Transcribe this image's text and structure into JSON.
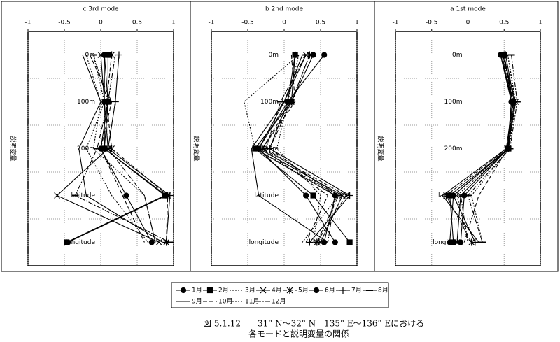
{
  "chart_data": [
    {
      "type": "line",
      "title": "c  3rd mode",
      "y_label": "説明変量",
      "orientation": "horizontal",
      "categories": [
        "0m",
        "100m",
        "200m",
        "latitude",
        "longitude"
      ],
      "xlim": [
        -1,
        1
      ],
      "xticks": [
        -1,
        -0.5,
        0,
        0.5,
        1
      ],
      "grid": true,
      "series": [
        {
          "name": "1月",
          "color": "#000000",
          "marker": "circle",
          "line_style": "solid",
          "values": [
            0.05,
            0.05,
            0.05,
            0.9,
            -0.45
          ]
        },
        {
          "name": "2月",
          "color": "#000000",
          "marker": "square",
          "line_style": "solid",
          "values": [
            0.1,
            0.1,
            0.05,
            0.88,
            -0.47
          ]
        },
        {
          "name": "3月",
          "color": "#000000",
          "marker": "none",
          "line_style": "dotted",
          "values": [
            -0.2,
            0.0,
            -0.1,
            0.6,
            0.75
          ]
        },
        {
          "name": "4月",
          "color": "#000000",
          "marker": "x",
          "line_style": "solid",
          "values": [
            0.0,
            0.05,
            0.1,
            -0.6,
            0.8
          ]
        },
        {
          "name": "5月",
          "color": "#000000",
          "marker": "star",
          "line_style": "dashed",
          "values": [
            0.15,
            0.08,
            0.15,
            0.92,
            0.9
          ]
        },
        {
          "name": "6月",
          "color": "#000000",
          "marker": "circle",
          "line_style": "solid",
          "values": [
            0.05,
            0.1,
            0.0,
            0.35,
            0.7
          ]
        },
        {
          "name": "7月",
          "color": "#000000",
          "marker": "plus",
          "line_style": "solid",
          "values": [
            0.25,
            0.2,
            0.1,
            0.95,
            0.9
          ]
        },
        {
          "name": "8月",
          "color": "#000000",
          "marker": "dash",
          "line_style": "dashdot",
          "values": [
            -0.1,
            0.1,
            -0.05,
            -0.35,
            0.95
          ]
        },
        {
          "name": "9月",
          "color": "#000000",
          "marker": "none",
          "line_style": "solid",
          "values": [
            -0.25,
            0.0,
            -0.3,
            -0.2,
            0.85
          ]
        },
        {
          "name": "10月",
          "color": "#000000",
          "marker": "none",
          "line_style": "dashed",
          "values": [
            -0.15,
            0.15,
            0.0,
            0.3,
            0.6
          ]
        },
        {
          "name": "11月",
          "color": "#000000",
          "marker": "none",
          "line_style": "dotted",
          "values": [
            -0.1,
            0.05,
            -0.2,
            0.15,
            0.65
          ]
        },
        {
          "name": "12月",
          "color": "#000000",
          "marker": "none",
          "line_style": "dashdot",
          "values": [
            0.2,
            0.1,
            0.1,
            0.6,
            0.75
          ]
        }
      ]
    },
    {
      "type": "line",
      "title": "b  2nd mode",
      "y_label": "説明変量",
      "orientation": "horizontal",
      "categories": [
        "0m",
        "100m",
        "200m",
        "latitude",
        "longitude"
      ],
      "xlim": [
        -1,
        1
      ],
      "xticks": [
        -1,
        -0.5,
        0,
        0.5,
        1
      ],
      "grid": true,
      "series": [
        {
          "values": [
            0.55,
            0.05,
            -0.35,
            0.3,
            0.7
          ]
        },
        {
          "values": [
            0.15,
            0.1,
            -0.4,
            0.4,
            0.9
          ]
        },
        {
          "values": [
            0.2,
            -0.55,
            -0.4,
            0.75,
            0.25
          ]
        },
        {
          "values": [
            0.3,
            0.0,
            -0.35,
            0.8,
            0.5
          ]
        },
        {
          "values": [
            0.35,
            0.1,
            -0.3,
            0.85,
            0.45
          ]
        },
        {
          "values": [
            0.4,
            0.1,
            -0.4,
            0.7,
            0.55
          ]
        },
        {
          "values": [
            0.15,
            0.05,
            -0.2,
            0.9,
            0.35
          ]
        },
        {
          "values": [
            0.3,
            -0.05,
            -0.25,
            0.75,
            0.45
          ]
        },
        {
          "values": [
            0.25,
            0.0,
            -0.45,
            -0.35,
            0.6
          ]
        },
        {
          "values": [
            0.1,
            0.15,
            -0.3,
            0.6,
            0.3
          ]
        },
        {
          "values": [
            0.2,
            0.05,
            -0.1,
            0.5,
            0.4
          ]
        },
        {
          "values": [
            0.35,
            0.1,
            -0.2,
            0.7,
            0.6
          ]
        }
      ]
    },
    {
      "type": "line",
      "title": "a  1st  mode",
      "y_label": "説明変量",
      "orientation": "horizontal",
      "categories": [
        "0m",
        "100m",
        "200m",
        "latitude",
        "longitude"
      ],
      "xlim": [
        -1,
        1
      ],
      "xticks": [
        -1,
        -0.5,
        0,
        0.5,
        1
      ],
      "grid": true,
      "series": [
        {
          "values": [
            0.45,
            0.6,
            0.55,
            -0.2,
            -0.25
          ]
        },
        {
          "values": [
            0.5,
            0.62,
            0.56,
            -0.25,
            -0.2
          ]
        },
        {
          "values": [
            0.55,
            0.65,
            0.57,
            -0.15,
            0.0
          ]
        },
        {
          "values": [
            0.48,
            0.66,
            0.55,
            -0.1,
            -0.15
          ]
        },
        {
          "values": [
            0.5,
            0.63,
            0.54,
            -0.3,
            0.05
          ]
        },
        {
          "values": [
            0.47,
            0.6,
            0.55,
            -0.05,
            -0.1
          ]
        },
        {
          "values": [
            0.52,
            0.64,
            0.56,
            -0.2,
            0.1
          ]
        },
        {
          "values": [
            0.6,
            0.68,
            0.58,
            0.0,
            0.2
          ]
        },
        {
          "values": [
            0.45,
            0.62,
            0.53,
            -0.35,
            0.15
          ]
        },
        {
          "values": [
            0.5,
            0.6,
            0.55,
            0.15,
            -0.05
          ]
        },
        {
          "values": [
            0.55,
            0.66,
            0.57,
            0.05,
            0.2
          ]
        },
        {
          "values": [
            0.48,
            0.62,
            0.55,
            -0.1,
            0.0
          ]
        }
      ]
    }
  ],
  "caption": [
    "図 5.1.12　　31° N～32° N　135° E～136° Eにおける",
    "各モードと説明変量の関係"
  ]
}
